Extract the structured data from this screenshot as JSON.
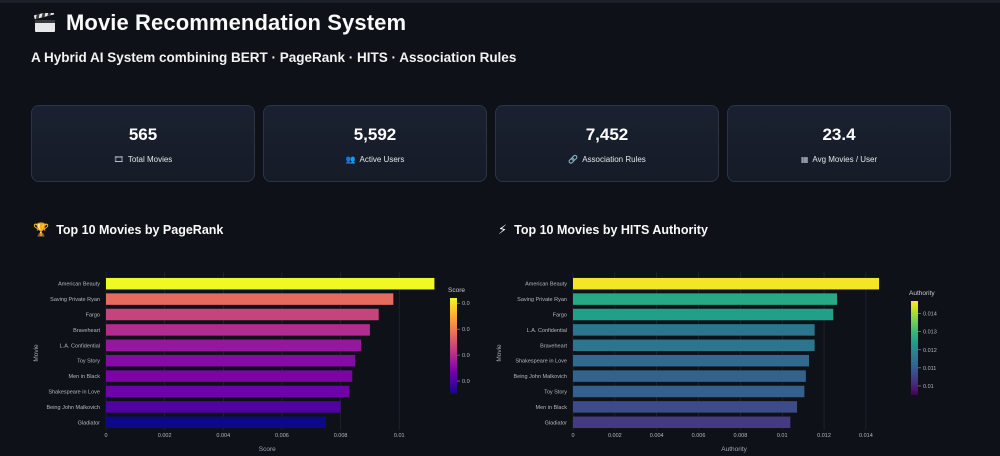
{
  "header": {
    "title": "Movie Recommendation System",
    "subtitle": "A Hybrid AI System combining BERT · PageRank · HITS · Association Rules",
    "icon": "clapperboard-icon"
  },
  "metrics": [
    {
      "value": "565",
      "label": "Total Movies",
      "icon": "film-frames-icon",
      "glyph": "🎞"
    },
    {
      "value": "5,592",
      "label": "Active Users",
      "icon": "users-icon",
      "glyph": "👥"
    },
    {
      "value": "7,452",
      "label": "Association Rules",
      "icon": "link-icon",
      "glyph": "🔗"
    },
    {
      "value": "23.4",
      "label": "Avg Movies / User",
      "icon": "stats-icon",
      "glyph": "▦"
    }
  ],
  "sections": {
    "pagerank_title": "Top 10 Movies by PageRank",
    "pagerank_icon": "🏆",
    "hits_title": "Top 10 Movies by HITS Authority",
    "hits_icon": "⚡"
  },
  "chart_data": [
    {
      "type": "bar",
      "orientation": "horizontal",
      "categories": [
        "American Beauty",
        "Saving Private Ryan",
        "Fargo",
        "Braveheart",
        "L.A. Confidential",
        "Toy Story",
        "Men in Black",
        "Shakespeare in Love",
        "Being John Malkovich",
        "Gladiator"
      ],
      "values": [
        0.0112,
        0.0098,
        0.0093,
        0.009,
        0.0087,
        0.0085,
        0.0084,
        0.0083,
        0.008,
        0.0075
      ],
      "xlabel": "Score",
      "ylabel": "Movie",
      "xlim": [
        0,
        0.0118
      ],
      "xticks": [
        0,
        0.002,
        0.004,
        0.006,
        0.008,
        0.01
      ],
      "xtick_labels": [
        "0",
        "0.002",
        "0.004",
        "0.006",
        "0.008",
        "0.01"
      ],
      "colorbar": {
        "title": "Score",
        "colorscale": "plasma",
        "range": [
          0.0075,
          0.0112
        ],
        "ticks": [
          0.008,
          0.009,
          0.01,
          0.011
        ],
        "tick_labels": [
          "0.008",
          "0.009",
          "0.01",
          "0.011"
        ]
      }
    },
    {
      "type": "bar",
      "orientation": "horizontal",
      "categories": [
        "American Beauty",
        "Saving Private Ryan",
        "Fargo",
        "L.A. Confidential",
        "Braveheart",
        "Shakespeare in Love",
        "Being John Malkovich",
        "Toy Story",
        "Men in Black",
        "Gladiator"
      ],
      "values": [
        0.01463,
        0.01262,
        0.01244,
        0.01155,
        0.01155,
        0.01128,
        0.01113,
        0.01106,
        0.01071,
        0.01039
      ],
      "xlabel": "Authority",
      "ylabel": "Movie",
      "xlim": [
        0,
        0.0152
      ],
      "xticks": [
        0,
        0.002,
        0.004,
        0.006,
        0.008,
        0.01,
        0.012,
        0.014
      ],
      "xtick_labels": [
        "0",
        "0.002",
        "0.004",
        "0.006",
        "0.008",
        "0.01",
        "0.012",
        "0.014"
      ],
      "colorbar": {
        "title": "Authority",
        "colorscale": "viridis",
        "range": [
          0.0095,
          0.0147
        ],
        "ticks": [
          0.01,
          0.011,
          0.012,
          0.013,
          0.014
        ],
        "tick_labels": [
          "0.01",
          "0.011",
          "0.012",
          "0.013",
          "0.014"
        ]
      }
    }
  ]
}
